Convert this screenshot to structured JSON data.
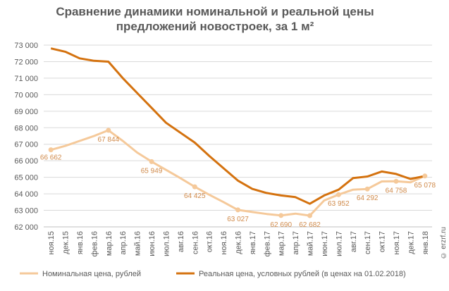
{
  "chart_data": {
    "type": "line",
    "title_line1": "Сравнение динамики номинальной и реальной цены",
    "title_line2": "предложений новостроек, за 1 м²",
    "categories": [
      "ноя.15",
      "дек.15",
      "янв.16",
      "фев.16",
      "мар.16",
      "апр.16",
      "май.16",
      "июн.16",
      "июл.16",
      "авг.16",
      "сен.16",
      "окт.16",
      "ноя.16",
      "дек.16",
      "янв.17",
      "фев.17",
      "мар.17",
      "апр.17",
      "май.17",
      "июн.17",
      "июл.17",
      "авг.17",
      "сен.17",
      "окт.17",
      "ноя.17",
      "дек.17",
      "янв.18"
    ],
    "yticks": [
      "62 000",
      "63 000",
      "64 000",
      "65 000",
      "66 000",
      "67 000",
      "68 000",
      "69 000",
      "70 000",
      "71 000",
      "72 000",
      "73 000"
    ],
    "ylim": [
      62000,
      73000
    ],
    "series": [
      {
        "name": "Номинальная цена, рублей",
        "color": "#f5c99a",
        "values": [
          66662,
          66900,
          67200,
          67500,
          67844,
          67200,
          66500,
          65949,
          65450,
          64950,
          64425,
          63950,
          63500,
          63027,
          62900,
          62780,
          62690,
          62800,
          62682,
          63600,
          63952,
          64250,
          64292,
          64750,
          64758,
          64700,
          65078
        ],
        "data_labels": {
          "0": "66 662",
          "4": "67 844",
          "7": "65 949",
          "10": "64 425",
          "13": "63 027",
          "16": "62 690",
          "18": "62 682",
          "20": "63 952",
          "22": "64 292",
          "24": "64 758",
          "26": "65 078"
        }
      },
      {
        "name": "Реальная цена, условных рублей (в ценах на 01.02.2018)",
        "color": "#d4720f",
        "values": [
          72800,
          72600,
          72200,
          72050,
          72000,
          71000,
          70100,
          69200,
          68300,
          67700,
          67100,
          66300,
          65550,
          64800,
          64300,
          64050,
          63900,
          63800,
          63400,
          63900,
          64250,
          64950,
          65050,
          65350,
          65200,
          64900,
          65078
        ]
      }
    ],
    "grid": true,
    "legend": "bottom"
  },
  "watermark": "© erzrf.ru"
}
